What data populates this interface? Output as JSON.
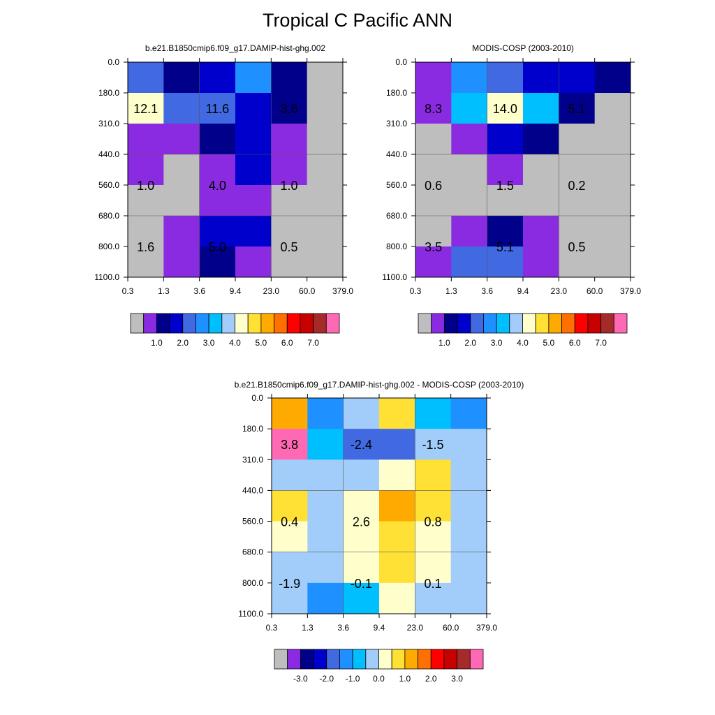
{
  "title": "Tropical C Pacific ANN",
  "colors": {
    "abs": [
      "#bebebe",
      "#8a2be2",
      "#00008b",
      "#0000cd",
      "#4169e1",
      "#1e90ff",
      "#00bfff",
      "#a2cdfa",
      "#ffffcc",
      "#ffe135",
      "#ffaa00",
      "#ff7000",
      "#ff0000",
      "#c80000",
      "#a52a2a",
      "#ff69b4"
    ],
    "diff": [
      "#bebebe",
      "#8a2be2",
      "#00008b",
      "#0000cd",
      "#4169e1",
      "#1e90ff",
      "#00bfff",
      "#a2cdfa",
      "#ffffcc",
      "#ffe135",
      "#ffaa00",
      "#ff7000",
      "#ff0000",
      "#c80000",
      "#a52a2a",
      "#ff69b4"
    ]
  },
  "chart_data": [
    {
      "type": "heatmap",
      "title": "b.e21.B1850cmip6.f09_g17.DAMIP-hist-ghg.002",
      "x_ticks": [
        "0.3",
        "1.3",
        "3.6",
        "9.4",
        "23.0",
        "60.0",
        "379.0"
      ],
      "y_ticks": [
        "0.0",
        "180.0",
        "310.0",
        "440.0",
        "560.0",
        "680.0",
        "800.0",
        "1100.0"
      ],
      "cell_color_index": [
        [
          4,
          2,
          3,
          5,
          2,
          0
        ],
        [
          8,
          4,
          4,
          3,
          2,
          0
        ],
        [
          1,
          1,
          2,
          3,
          1,
          0
        ],
        [
          1,
          0,
          1,
          3,
          1,
          0
        ],
        [
          0,
          0,
          1,
          1,
          0,
          0
        ],
        [
          0,
          1,
          3,
          3,
          0,
          0
        ],
        [
          0,
          1,
          2,
          1,
          0,
          0
        ]
      ],
      "annotations": [
        {
          "col": 0.5,
          "row": 1.5,
          "text": "12.1"
        },
        {
          "col": 2.5,
          "row": 1.5,
          "text": "11.6"
        },
        {
          "col": 4.5,
          "row": 1.5,
          "text": "3.6"
        },
        {
          "col": 0.5,
          "row": 4,
          "text": "1.0"
        },
        {
          "col": 2.5,
          "row": 4,
          "text": "4.0"
        },
        {
          "col": 4.5,
          "row": 4,
          "text": "1.0"
        },
        {
          "col": 0.5,
          "row": 6,
          "text": "1.6"
        },
        {
          "col": 2.5,
          "row": 6,
          "text": "5.0"
        },
        {
          "col": 4.5,
          "row": 6,
          "text": "0.5"
        }
      ],
      "colorbar_labels": [
        "1.0",
        "2.0",
        "3.0",
        "4.0",
        "5.0",
        "6.0",
        "7.0"
      ]
    },
    {
      "type": "heatmap",
      "title": "MODIS-COSP (2003-2010)",
      "x_ticks": [
        "0.3",
        "1.3",
        "3.6",
        "9.4",
        "23.0",
        "60.0",
        "379.0"
      ],
      "y_ticks": [
        "0.0",
        "180.0",
        "310.0",
        "440.0",
        "560.0",
        "680.0",
        "800.0",
        "1100.0"
      ],
      "cell_color_index": [
        [
          1,
          5,
          4,
          3,
          3,
          2
        ],
        [
          1,
          6,
          8,
          6,
          2,
          0
        ],
        [
          0,
          1,
          3,
          2,
          0,
          0
        ],
        [
          0,
          0,
          1,
          0,
          0,
          0
        ],
        [
          0,
          0,
          0,
          0,
          0,
          0
        ],
        [
          0,
          1,
          2,
          1,
          0,
          0
        ],
        [
          1,
          4,
          4,
          1,
          0,
          0
        ]
      ],
      "annotations": [
        {
          "col": 0.5,
          "row": 1.5,
          "text": "8.3"
        },
        {
          "col": 2.5,
          "row": 1.5,
          "text": "14.0"
        },
        {
          "col": 4.5,
          "row": 1.5,
          "text": "5.1"
        },
        {
          "col": 0.5,
          "row": 4,
          "text": "0.6"
        },
        {
          "col": 2.5,
          "row": 4,
          "text": "1.5"
        },
        {
          "col": 4.5,
          "row": 4,
          "text": "0.2"
        },
        {
          "col": 0.5,
          "row": 6,
          "text": "3.5"
        },
        {
          "col": 2.5,
          "row": 6,
          "text": "5.1"
        },
        {
          "col": 4.5,
          "row": 6,
          "text": "0.5"
        }
      ],
      "colorbar_labels": [
        "1.0",
        "2.0",
        "3.0",
        "4.0",
        "5.0",
        "6.0",
        "7.0"
      ]
    },
    {
      "type": "heatmap",
      "title": "b.e21.B1850cmip6.f09_g17.DAMIP-hist-ghg.002 - MODIS-COSP (2003-2010)",
      "x_ticks": [
        "0.3",
        "1.3",
        "3.6",
        "9.4",
        "23.0",
        "60.0",
        "379.0"
      ],
      "y_ticks": [
        "0.0",
        "180.0",
        "310.0",
        "440.0",
        "560.0",
        "680.0",
        "800.0",
        "1100.0"
      ],
      "cell_color_index": [
        [
          10,
          5,
          7,
          9,
          6,
          5
        ],
        [
          15,
          6,
          4,
          4,
          7,
          7
        ],
        [
          7,
          7,
          7,
          8,
          9,
          7
        ],
        [
          9,
          7,
          8,
          10,
          9,
          7
        ],
        [
          8,
          7,
          8,
          9,
          8,
          7
        ],
        [
          7,
          7,
          8,
          9,
          8,
          7
        ],
        [
          7,
          5,
          6,
          8,
          7,
          7
        ]
      ],
      "annotations": [
        {
          "col": 0.5,
          "row": 1.5,
          "text": "3.8"
        },
        {
          "col": 2.5,
          "row": 1.5,
          "text": "-2.4"
        },
        {
          "col": 4.5,
          "row": 1.5,
          "text": "-1.5"
        },
        {
          "col": 0.5,
          "row": 4,
          "text": "0.4"
        },
        {
          "col": 2.5,
          "row": 4,
          "text": "2.6"
        },
        {
          "col": 4.5,
          "row": 4,
          "text": "0.8"
        },
        {
          "col": 0.5,
          "row": 6,
          "text": "-1.9"
        },
        {
          "col": 2.5,
          "row": 6,
          "text": "-0.1"
        },
        {
          "col": 4.5,
          "row": 6,
          "text": "0.1"
        }
      ],
      "colorbar_labels": [
        "-3.0",
        "-2.0",
        "-1.0",
        "0.0",
        "1.0",
        "2.0",
        "3.0"
      ]
    }
  ]
}
